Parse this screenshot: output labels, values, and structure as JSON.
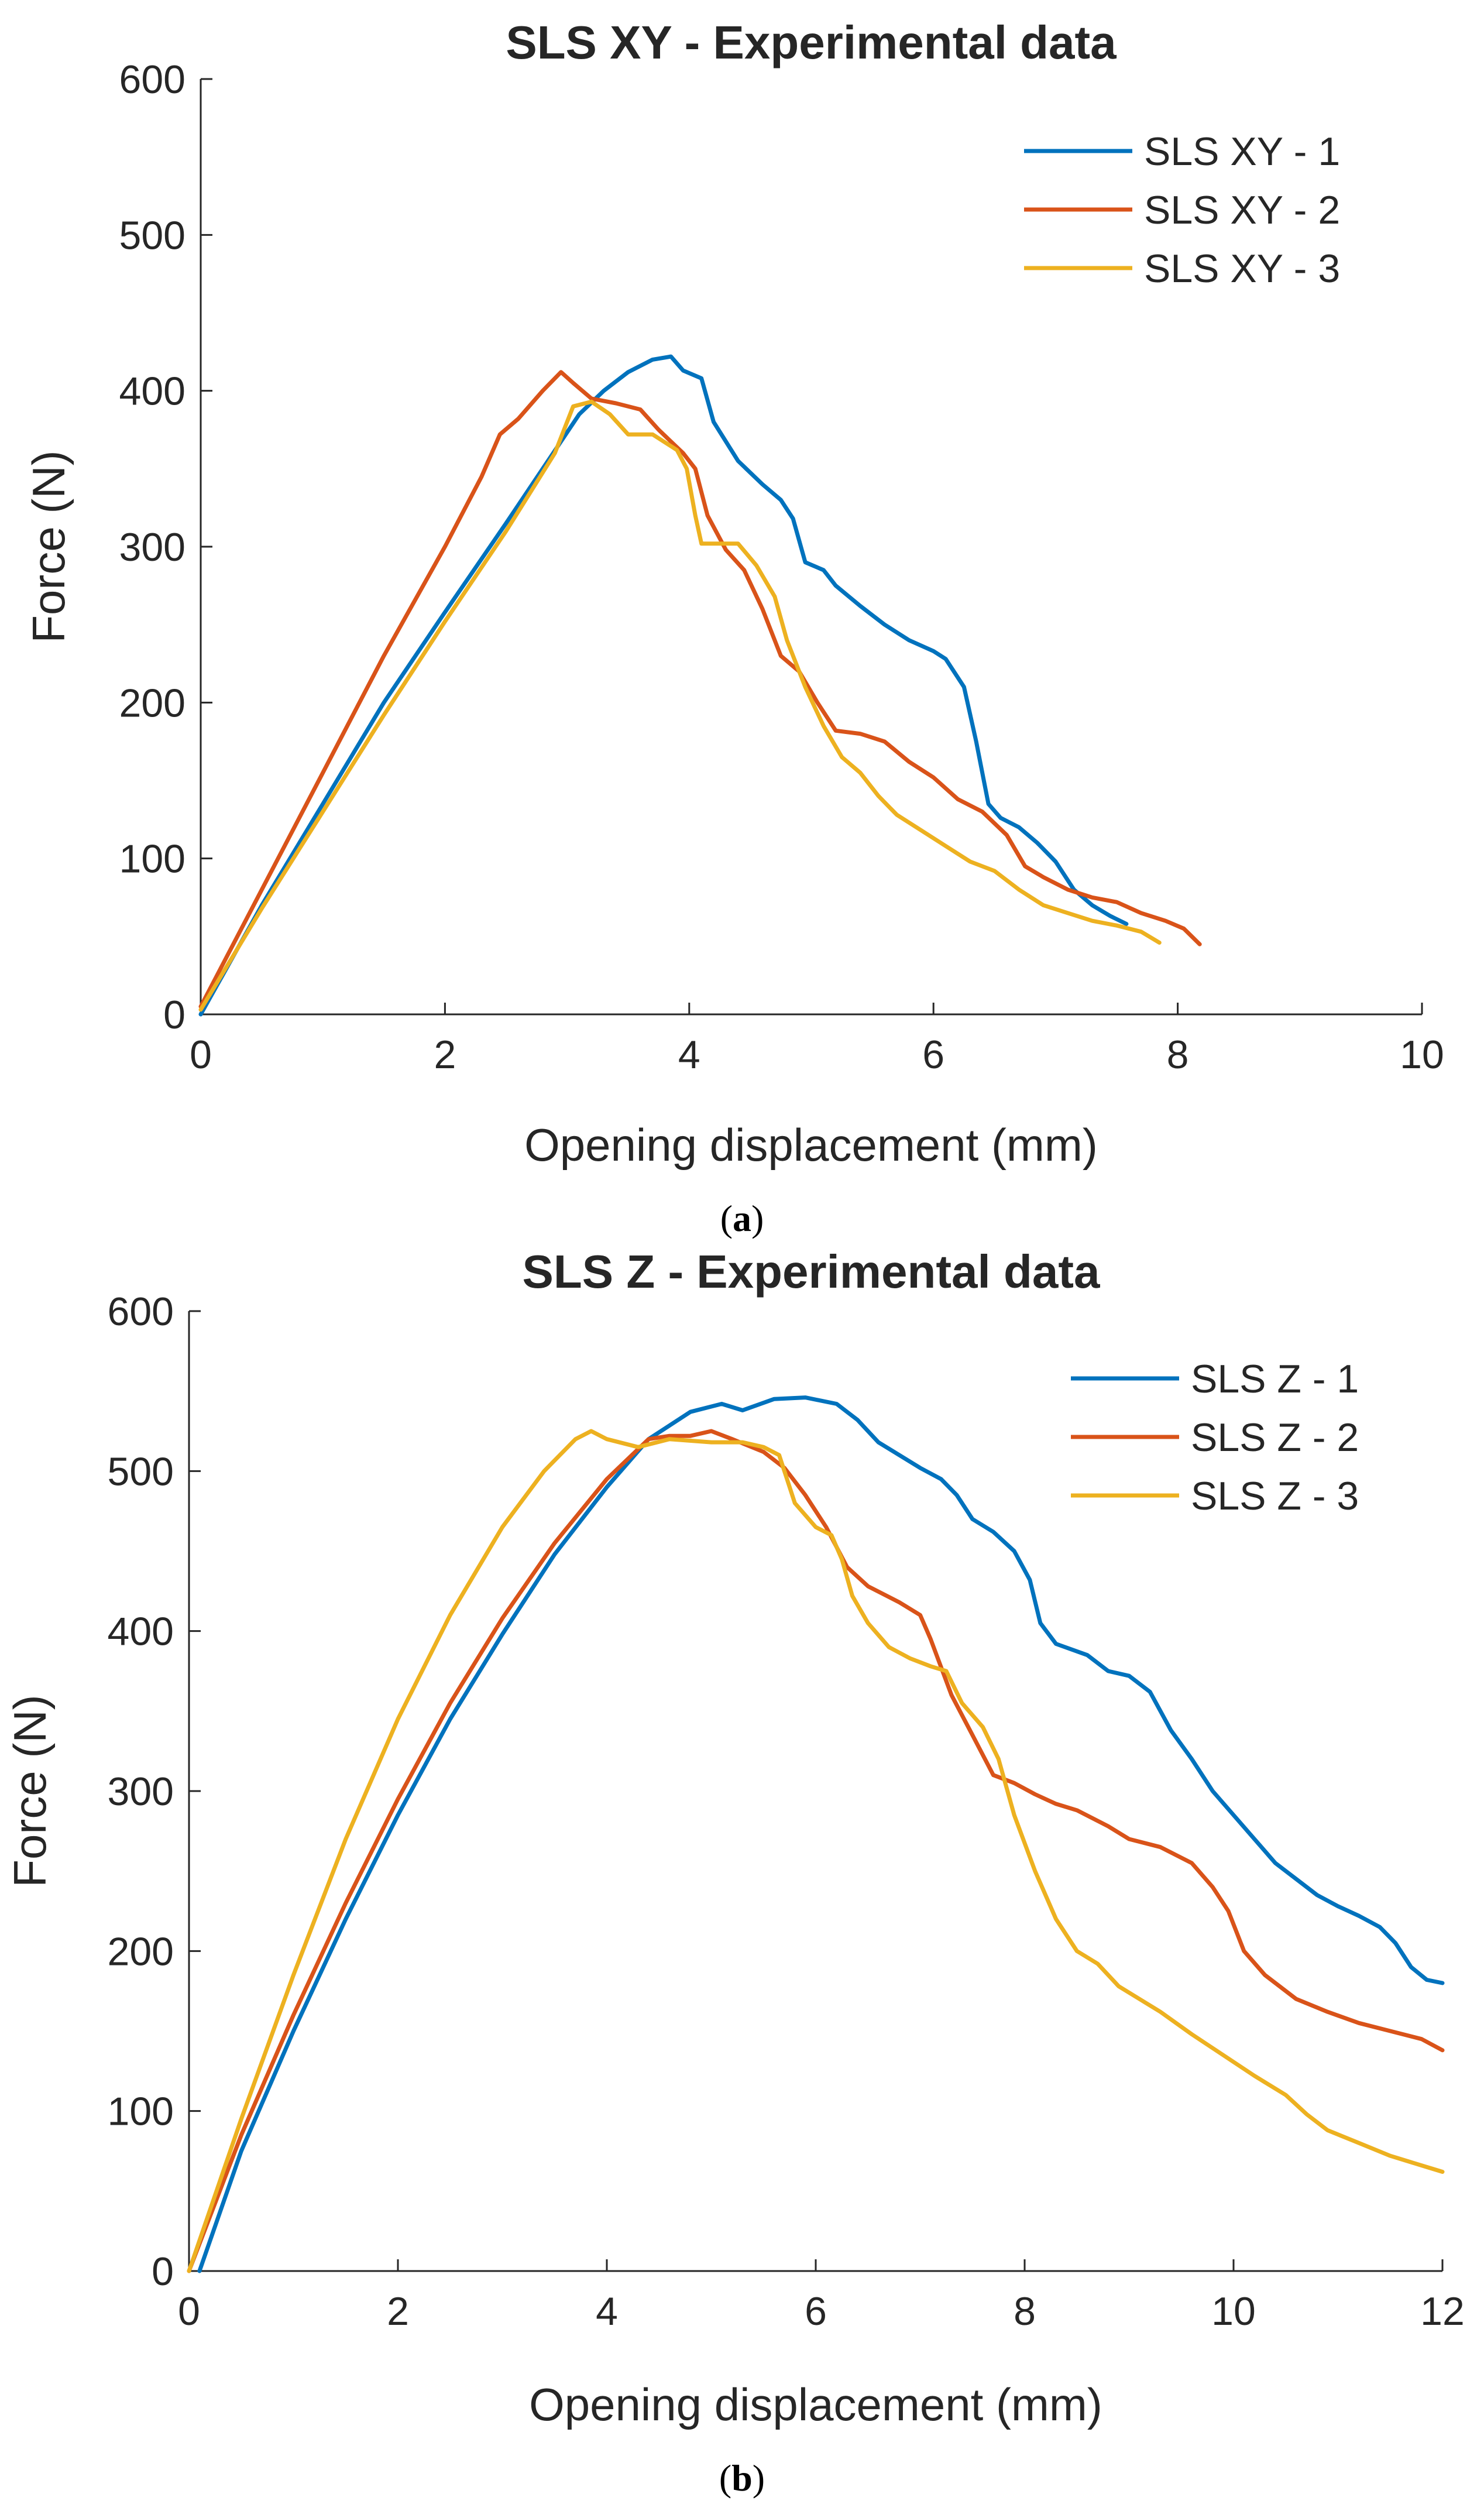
{
  "figure": {
    "caption_a": "a",
    "caption_b": "b"
  },
  "chart_data": [
    {
      "type": "line",
      "title": "SLS XY - Experimental data",
      "xlabel": "Opening displacement (mm)",
      "ylabel": "Force (N)",
      "xlim": [
        0,
        10
      ],
      "ylim": [
        0,
        600
      ],
      "xticks": [
        "0",
        "2",
        "4",
        "6",
        "8",
        "10"
      ],
      "yticks": [
        "0",
        "100",
        "200",
        "300",
        "400",
        "500",
        "600"
      ],
      "legend_position": "top-right",
      "series": [
        {
          "name": "SLS XY - 1",
          "color": "#0072BD",
          "points": [
            [
              0,
              0
            ],
            [
              0.5,
              70
            ],
            [
              1,
              135
            ],
            [
              1.5,
              200
            ],
            [
              2,
              258
            ],
            [
              2.5,
              315
            ],
            [
              2.8,
              350
            ],
            [
              3.1,
              385
            ],
            [
              3.3,
              400
            ],
            [
              3.5,
              412
            ],
            [
              3.7,
              420
            ],
            [
              3.85,
              422
            ],
            [
              3.95,
              413
            ],
            [
              4.1,
              408
            ],
            [
              4.2,
              380
            ],
            [
              4.4,
              355
            ],
            [
              4.6,
              340
            ],
            [
              4.75,
              330
            ],
            [
              4.85,
              318
            ],
            [
              4.95,
              290
            ],
            [
              5.1,
              285
            ],
            [
              5.2,
              275
            ],
            [
              5.4,
              262
            ],
            [
              5.6,
              250
            ],
            [
              5.8,
              240
            ],
            [
              6.0,
              233
            ],
            [
              6.1,
              228
            ],
            [
              6.25,
              210
            ],
            [
              6.35,
              175
            ],
            [
              6.45,
              135
            ],
            [
              6.55,
              126
            ],
            [
              6.7,
              120
            ],
            [
              6.85,
              110
            ],
            [
              7.0,
              98
            ],
            [
              7.15,
              80
            ],
            [
              7.3,
              70
            ],
            [
              7.45,
              63
            ],
            [
              7.58,
              58
            ]
          ]
        },
        {
          "name": "SLS XY - 2",
          "color": "#D95319",
          "points": [
            [
              0,
              5
            ],
            [
              0.5,
              80
            ],
            [
              1,
              155
            ],
            [
              1.5,
              230
            ],
            [
              2,
              300
            ],
            [
              2.3,
              345
            ],
            [
              2.45,
              372
            ],
            [
              2.6,
              382
            ],
            [
              2.8,
              400
            ],
            [
              2.95,
              412
            ],
            [
              3.05,
              405
            ],
            [
              3.2,
              395
            ],
            [
              3.4,
              392
            ],
            [
              3.6,
              388
            ],
            [
              3.75,
              375
            ],
            [
              3.95,
              360
            ],
            [
              4.05,
              350
            ],
            [
              4.15,
              320
            ],
            [
              4.3,
              298
            ],
            [
              4.45,
              285
            ],
            [
              4.6,
              260
            ],
            [
              4.75,
              230
            ],
            [
              4.9,
              220
            ],
            [
              5.05,
              200
            ],
            [
              5.2,
              182
            ],
            [
              5.4,
              180
            ],
            [
              5.6,
              175
            ],
            [
              5.8,
              162
            ],
            [
              6.0,
              152
            ],
            [
              6.2,
              138
            ],
            [
              6.4,
              130
            ],
            [
              6.6,
              115
            ],
            [
              6.75,
              95
            ],
            [
              6.9,
              88
            ],
            [
              7.1,
              80
            ],
            [
              7.3,
              75
            ],
            [
              7.5,
              72
            ],
            [
              7.7,
              65
            ],
            [
              7.9,
              60
            ],
            [
              8.05,
              55
            ],
            [
              8.18,
              45
            ]
          ]
        },
        {
          "name": "SLS XY - 3",
          "color": "#EDB120",
          "points": [
            [
              0,
              3
            ],
            [
              0.5,
              68
            ],
            [
              1,
              130
            ],
            [
              1.5,
              192
            ],
            [
              2,
              252
            ],
            [
              2.5,
              310
            ],
            [
              2.9,
              360
            ],
            [
              3.05,
              390
            ],
            [
              3.2,
              393
            ],
            [
              3.35,
              385
            ],
            [
              3.5,
              372
            ],
            [
              3.7,
              372
            ],
            [
              3.9,
              362
            ],
            [
              3.98,
              350
            ],
            [
              4.05,
              320
            ],
            [
              4.1,
              302
            ],
            [
              4.25,
              302
            ],
            [
              4.4,
              302
            ],
            [
              4.55,
              288
            ],
            [
              4.7,
              268
            ],
            [
              4.8,
              240
            ],
            [
              4.95,
              210
            ],
            [
              5.1,
              185
            ],
            [
              5.25,
              165
            ],
            [
              5.4,
              155
            ],
            [
              5.55,
              140
            ],
            [
              5.7,
              128
            ],
            [
              5.9,
              118
            ],
            [
              6.1,
              108
            ],
            [
              6.3,
              98
            ],
            [
              6.5,
              92
            ],
            [
              6.7,
              80
            ],
            [
              6.9,
              70
            ],
            [
              7.1,
              65
            ],
            [
              7.3,
              60
            ],
            [
              7.5,
              57
            ],
            [
              7.7,
              53
            ],
            [
              7.85,
              46
            ]
          ]
        }
      ]
    },
    {
      "type": "line",
      "title": "SLS Z - Experimental data",
      "xlabel": "Opening displacement (mm)",
      "ylabel": "Force (N)",
      "xlim": [
        0,
        12
      ],
      "ylim": [
        0,
        600
      ],
      "xticks": [
        "0",
        "2",
        "4",
        "6",
        "8",
        "10",
        "12"
      ],
      "yticks": [
        "0",
        "100",
        "200",
        "300",
        "400",
        "500",
        "600"
      ],
      "legend_position": "top-right",
      "series": [
        {
          "name": "SLS Z - 1",
          "color": "#0072BD",
          "points": [
            [
              0.1,
              0
            ],
            [
              0.5,
              75
            ],
            [
              1,
              150
            ],
            [
              1.5,
              220
            ],
            [
              2,
              285
            ],
            [
              2.5,
              345
            ],
            [
              3,
              398
            ],
            [
              3.5,
              448
            ],
            [
              4,
              490
            ],
            [
              4.4,
              520
            ],
            [
              4.8,
              537
            ],
            [
              5.1,
              542
            ],
            [
              5.3,
              538
            ],
            [
              5.6,
              545
            ],
            [
              5.9,
              546
            ],
            [
              6.2,
              542
            ],
            [
              6.4,
              532
            ],
            [
              6.6,
              518
            ],
            [
              6.8,
              510
            ],
            [
              7.0,
              502
            ],
            [
              7.2,
              495
            ],
            [
              7.35,
              485
            ],
            [
              7.5,
              470
            ],
            [
              7.7,
              462
            ],
            [
              7.9,
              450
            ],
            [
              8.05,
              432
            ],
            [
              8.15,
              405
            ],
            [
              8.3,
              392
            ],
            [
              8.6,
              385
            ],
            [
              8.8,
              375
            ],
            [
              9.0,
              372
            ],
            [
              9.2,
              362
            ],
            [
              9.4,
              338
            ],
            [
              9.6,
              320
            ],
            [
              9.8,
              300
            ],
            [
              10.0,
              285
            ],
            [
              10.2,
              270
            ],
            [
              10.4,
              255
            ],
            [
              10.6,
              245
            ],
            [
              10.8,
              235
            ],
            [
              11.0,
              228
            ],
            [
              11.2,
              222
            ],
            [
              11.4,
              215
            ],
            [
              11.55,
              205
            ],
            [
              11.7,
              190
            ],
            [
              11.85,
              182
            ],
            [
              12,
              180
            ]
          ]
        },
        {
          "name": "SLS Z - 2",
          "color": "#D95319",
          "points": [
            [
              0,
              0
            ],
            [
              0.5,
              85
            ],
            [
              1,
              160
            ],
            [
              1.5,
              230
            ],
            [
              2,
              295
            ],
            [
              2.5,
              355
            ],
            [
              3,
              408
            ],
            [
              3.5,
              455
            ],
            [
              4,
              495
            ],
            [
              4.4,
              520
            ],
            [
              4.6,
              522
            ],
            [
              4.8,
              522
            ],
            [
              5.0,
              525
            ],
            [
              5.2,
              520
            ],
            [
              5.5,
              512
            ],
            [
              5.7,
              502
            ],
            [
              5.9,
              485
            ],
            [
              6.1,
              465
            ],
            [
              6.3,
              440
            ],
            [
              6.5,
              428
            ],
            [
              6.8,
              418
            ],
            [
              7.0,
              410
            ],
            [
              7.1,
              395
            ],
            [
              7.3,
              360
            ],
            [
              7.5,
              335
            ],
            [
              7.7,
              310
            ],
            [
              7.9,
              305
            ],
            [
              8.1,
              298
            ],
            [
              8.3,
              292
            ],
            [
              8.5,
              288
            ],
            [
              8.8,
              278
            ],
            [
              9.0,
              270
            ],
            [
              9.3,
              265
            ],
            [
              9.6,
              255
            ],
            [
              9.8,
              240
            ],
            [
              9.95,
              225
            ],
            [
              10.1,
              200
            ],
            [
              10.3,
              185
            ],
            [
              10.6,
              170
            ],
            [
              10.9,
              162
            ],
            [
              11.2,
              155
            ],
            [
              11.5,
              150
            ],
            [
              11.8,
              145
            ],
            [
              12,
              138
            ]
          ]
        },
        {
          "name": "SLS Z - 3",
          "color": "#EDB120",
          "points": [
            [
              0,
              0
            ],
            [
              0.5,
              95
            ],
            [
              1,
              185
            ],
            [
              1.5,
              270
            ],
            [
              2,
              345
            ],
            [
              2.5,
              410
            ],
            [
              3,
              465
            ],
            [
              3.4,
              500
            ],
            [
              3.7,
              520
            ],
            [
              3.85,
              525
            ],
            [
              4.0,
              520
            ],
            [
              4.3,
              515
            ],
            [
              4.6,
              520
            ],
            [
              5.0,
              518
            ],
            [
              5.3,
              518
            ],
            [
              5.5,
              515
            ],
            [
              5.65,
              510
            ],
            [
              5.8,
              480
            ],
            [
              6.0,
              465
            ],
            [
              6.15,
              460
            ],
            [
              6.25,
              445
            ],
            [
              6.35,
              422
            ],
            [
              6.5,
              405
            ],
            [
              6.7,
              390
            ],
            [
              6.9,
              383
            ],
            [
              7.1,
              378
            ],
            [
              7.25,
              375
            ],
            [
              7.4,
              355
            ],
            [
              7.6,
              340
            ],
            [
              7.75,
              320
            ],
            [
              7.9,
              285
            ],
            [
              8.1,
              250
            ],
            [
              8.3,
              220
            ],
            [
              8.5,
              200
            ],
            [
              8.7,
              192
            ],
            [
              8.9,
              178
            ],
            [
              9.1,
              170
            ],
            [
              9.3,
              162
            ],
            [
              9.6,
              148
            ],
            [
              9.9,
              135
            ],
            [
              10.2,
              122
            ],
            [
              10.5,
              110
            ],
            [
              10.7,
              98
            ],
            [
              10.9,
              88
            ],
            [
              11.2,
              80
            ],
            [
              11.5,
              72
            ],
            [
              11.8,
              66
            ],
            [
              12,
              62
            ]
          ]
        }
      ]
    }
  ]
}
